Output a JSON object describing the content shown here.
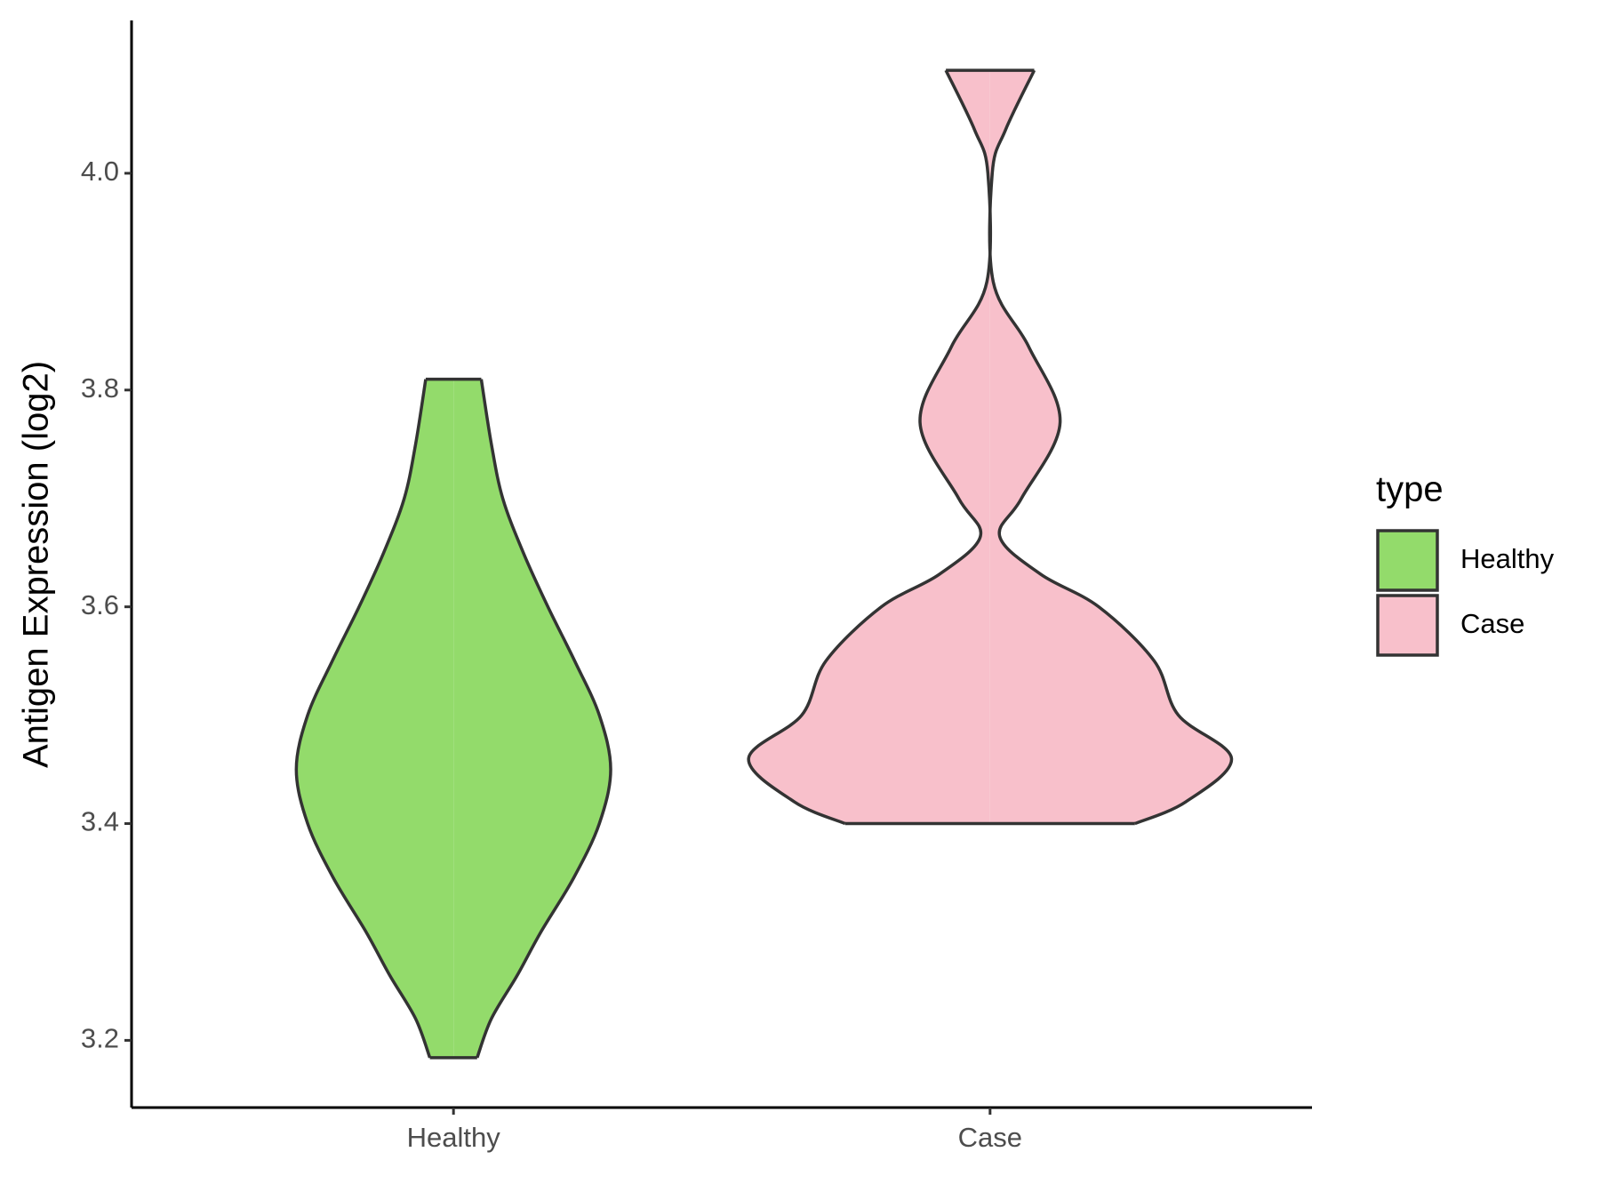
{
  "chart_data": {
    "type": "violin",
    "y_label": "Antigen Expression (log2)",
    "categories": [
      "Healthy",
      "Case"
    ],
    "series": [
      {
        "name": "Healthy",
        "color": "#93db6b",
        "y": [
          3.184,
          3.22,
          3.26,
          3.3,
          3.35,
          3.4,
          3.45,
          3.5,
          3.55,
          3.6,
          3.65,
          3.7,
          3.75,
          3.81
        ],
        "width": [
          0.098,
          0.157,
          0.264,
          0.362,
          0.498,
          0.604,
          0.651,
          0.604,
          0.502,
          0.391,
          0.289,
          0.204,
          0.157,
          0.115
        ]
      },
      {
        "name": "Case",
        "color": "#f8c0cb",
        "y": [
          3.4,
          3.42,
          3.46,
          3.5,
          3.55,
          3.6,
          3.63,
          3.665,
          3.7,
          3.77,
          3.84,
          3.9,
          4.0,
          4.04,
          4.095
        ],
        "width": [
          0.6,
          0.81,
          1.0,
          0.78,
          0.68,
          0.45,
          0.21,
          0.04,
          0.13,
          0.29,
          0.16,
          0.013,
          0.009,
          0.064,
          0.183
        ]
      }
    ],
    "ylim": [
      3.138,
      4.141
    ],
    "yticks": [
      3.2,
      3.4,
      3.6,
      3.8,
      {
        "value": 4,
        "label": "4.0"
      }
    ],
    "legend_title": "type",
    "legend_position": "right"
  }
}
